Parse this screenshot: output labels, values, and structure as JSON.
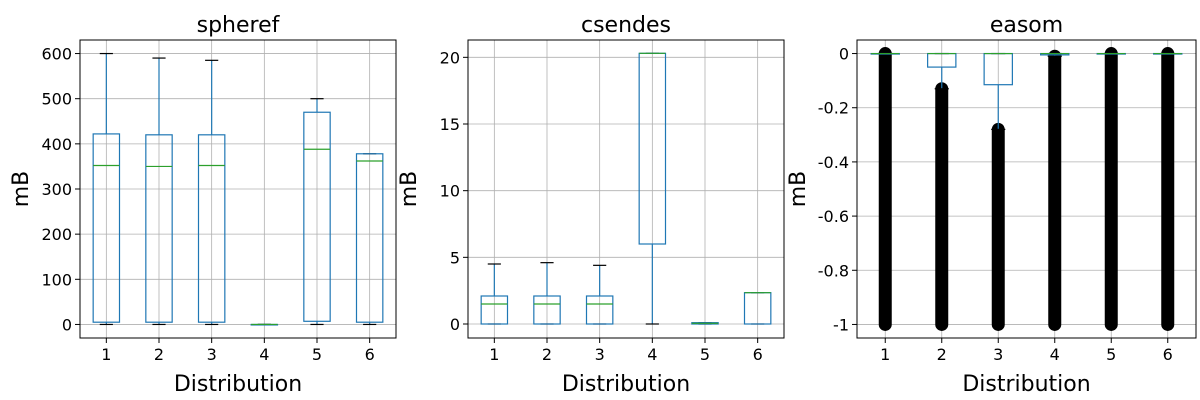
{
  "chart_data": [
    {
      "type": "box",
      "title": "spheref",
      "xlabel": "Distribution",
      "ylabel": "mB",
      "categories": [
        "1",
        "2",
        "3",
        "4",
        "5",
        "6"
      ],
      "ylim": [
        -30,
        630
      ],
      "yticks": [
        0,
        100,
        200,
        300,
        400,
        500,
        600
      ],
      "grid": true,
      "boxes": [
        {
          "whislo": 0,
          "q1": 5,
          "med": 352,
          "q3": 422,
          "whishi": 600
        },
        {
          "whislo": 0,
          "q1": 5,
          "med": 350,
          "q3": 420,
          "whishi": 590
        },
        {
          "whislo": 0,
          "q1": 5,
          "med": 352,
          "q3": 420,
          "whishi": 585
        },
        {
          "whislo": 0,
          "q1": 0,
          "med": 0,
          "q3": 0,
          "whishi": 0
        },
        {
          "whislo": 0,
          "q1": 7,
          "med": 388,
          "q3": 470,
          "whishi": 500
        },
        {
          "whislo": 0,
          "q1": 5,
          "med": 362,
          "q3": 378,
          "whishi": 378
        }
      ]
    },
    {
      "type": "box",
      "title": "csendes",
      "xlabel": "Distribution",
      "ylabel": "mB",
      "categories": [
        "1",
        "2",
        "3",
        "4",
        "5",
        "6"
      ],
      "ylim": [
        -1.05,
        21.3
      ],
      "yticks": [
        0,
        5,
        10,
        15,
        20
      ],
      "grid": true,
      "boxes": [
        {
          "whislo": 0,
          "q1": 0,
          "med": 1.5,
          "q3": 2.1,
          "whishi": 4.5
        },
        {
          "whislo": 0,
          "q1": 0,
          "med": 1.5,
          "q3": 2.1,
          "whishi": 4.6
        },
        {
          "whislo": 0,
          "q1": 0,
          "med": 1.5,
          "q3": 2.1,
          "whishi": 4.4
        },
        {
          "whislo": 0,
          "q1": 6.0,
          "med": 20.3,
          "q3": 20.3,
          "whishi": 20.3
        },
        {
          "whislo": 0,
          "q1": 0,
          "med": 0.05,
          "q3": 0.1,
          "whishi": 0.1
        },
        {
          "whislo": 0,
          "q1": 0,
          "med": 2.35,
          "q3": 2.35,
          "whishi": 2.35
        }
      ]
    },
    {
      "type": "box",
      "title": "easom",
      "xlabel": "Distribution",
      "ylabel": "mB",
      "categories": [
        "1",
        "2",
        "3",
        "4",
        "5",
        "6"
      ],
      "ylim": [
        -1.05,
        0.05
      ],
      "yticks": [
        -1.0,
        -0.8,
        -0.6,
        -0.4,
        -0.2,
        0.0
      ],
      "grid": true,
      "boxes": [
        {
          "whislo": 0,
          "q1": 0,
          "med": 0,
          "q3": 0,
          "whishi": 0,
          "flier_range": [
            -1.0,
            0
          ]
        },
        {
          "whislo": -0.13,
          "q1": -0.05,
          "med": 0,
          "q3": 0,
          "whishi": 0,
          "flier_range": [
            -1.0,
            -0.13
          ]
        },
        {
          "whislo": -0.28,
          "q1": -0.115,
          "med": 0,
          "q3": 0,
          "whishi": 0,
          "flier_range": [
            -1.0,
            -0.28
          ]
        },
        {
          "whislo": -0.01,
          "q1": -0.005,
          "med": 0,
          "q3": 0,
          "whishi": 0,
          "flier_range": [
            -1.0,
            -0.01
          ]
        },
        {
          "whislo": 0,
          "q1": 0,
          "med": 0,
          "q3": 0,
          "whishi": 0,
          "flier_range": [
            -1.0,
            0
          ]
        },
        {
          "whislo": 0,
          "q1": 0,
          "med": 0,
          "q3": 0,
          "whishi": 0,
          "flier_range": [
            -1.0,
            0
          ]
        }
      ]
    }
  ]
}
